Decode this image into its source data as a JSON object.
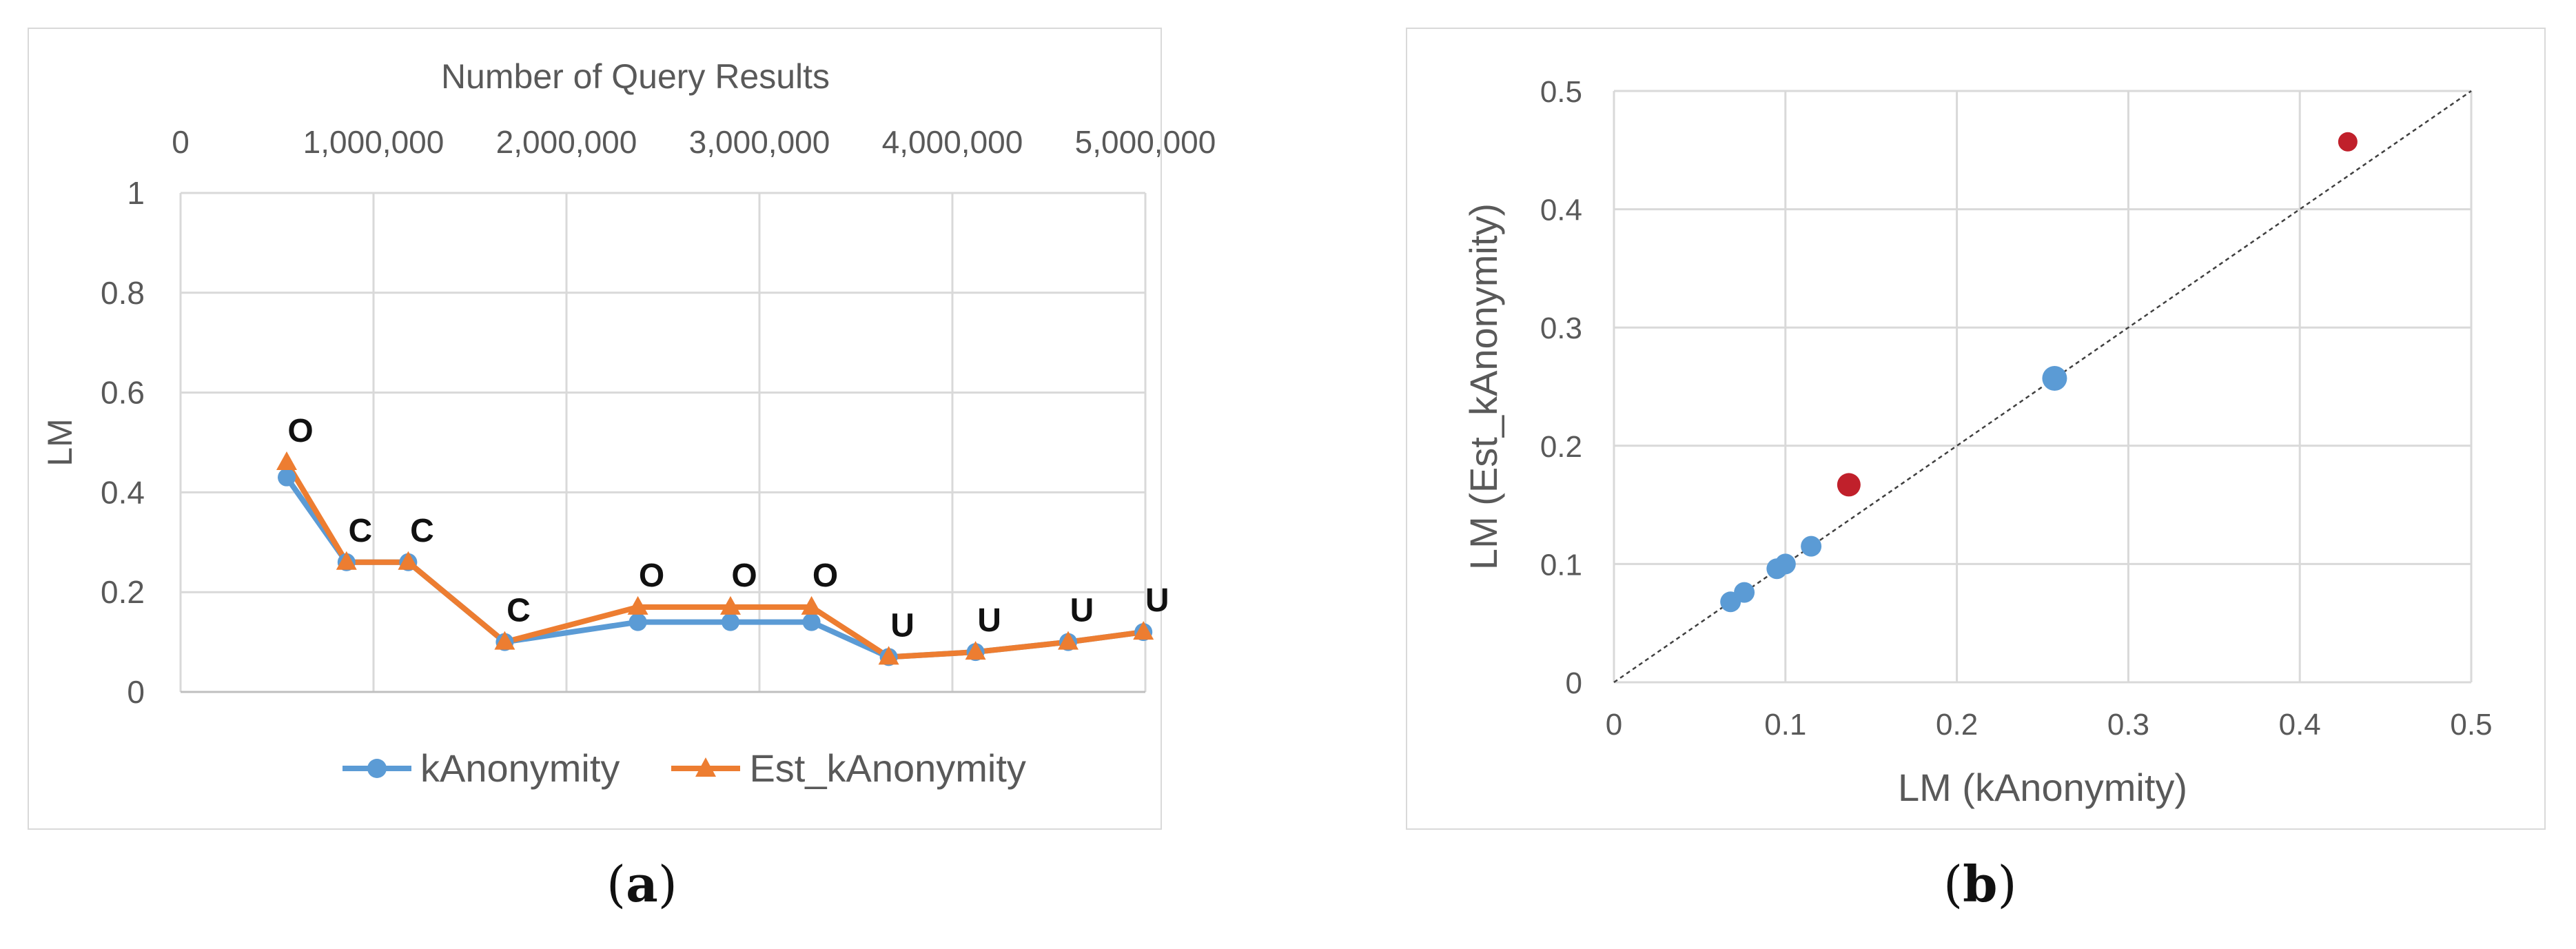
{
  "chart_data": [
    {
      "panel": "a",
      "type": "line",
      "title": "",
      "xlabel": "Number of Query Results",
      "ylabel": "LM",
      "xlim": [
        0,
        5000000
      ],
      "ylim": [
        0,
        1
      ],
      "x_ticks": [
        "0",
        "1,000,000",
        "2,000,000",
        "3,000,000",
        "4,000,000",
        "5,000,000"
      ],
      "y_ticks": [
        "0",
        "0.2",
        "0.4",
        "0.6",
        "0.8",
        "1"
      ],
      "x_axis_position": "top",
      "grid": true,
      "legend": "bottom",
      "series": [
        {
          "name": "kAnonymity",
          "color": "#5b9bd5",
          "marker": "circle",
          "x": [
            550000,
            860000,
            1180000,
            1680000,
            2370000,
            2850000,
            3270000,
            3670000,
            4120000,
            4600000,
            4990000
          ],
          "values": [
            0.43,
            0.26,
            0.26,
            0.1,
            0.14,
            0.14,
            0.14,
            0.07,
            0.08,
            0.1,
            0.12
          ]
        },
        {
          "name": "Est_kAnonymity",
          "color": "#ed7d31",
          "marker": "triangle",
          "x": [
            550000,
            860000,
            1180000,
            1680000,
            2370000,
            2850000,
            3270000,
            3670000,
            4120000,
            4600000,
            4990000
          ],
          "values": [
            0.46,
            0.26,
            0.26,
            0.1,
            0.17,
            0.17,
            0.17,
            0.07,
            0.08,
            0.1,
            0.12
          ]
        }
      ],
      "annotations": [
        "O",
        "C",
        "C",
        "C",
        "O",
        "O",
        "O",
        "U",
        "U",
        "U",
        "U"
      ]
    },
    {
      "panel": "b",
      "type": "scatter",
      "title": "",
      "xlabel": "LM (kAnonymity)",
      "ylabel": "LM (Est_kAnonymity)",
      "xlim": [
        0,
        0.5
      ],
      "ylim": [
        0,
        0.5
      ],
      "x_ticks": [
        "0",
        "0.1",
        "0.2",
        "0.3",
        "0.4",
        "0.5"
      ],
      "y_ticks": [
        "0",
        "0.1",
        "0.2",
        "0.3",
        "0.4",
        "0.5"
      ],
      "grid": true,
      "diagonal": true,
      "points": [
        {
          "x": 0.068,
          "y": 0.068,
          "color": "#5b9bd5"
        },
        {
          "x": 0.076,
          "y": 0.076,
          "color": "#5b9bd5"
        },
        {
          "x": 0.095,
          "y": 0.096,
          "color": "#5b9bd5"
        },
        {
          "x": 0.1,
          "y": 0.1,
          "color": "#5b9bd5"
        },
        {
          "x": 0.115,
          "y": 0.115,
          "color": "#5b9bd5"
        },
        {
          "x": 0.257,
          "y": 0.257,
          "color": "#5b9bd5"
        },
        {
          "x": 0.137,
          "y": 0.167,
          "color": "#c0202b"
        },
        {
          "x": 0.428,
          "y": 0.457,
          "color": "#c0202b"
        }
      ]
    }
  ],
  "captions": {
    "a": "a",
    "b": "b"
  }
}
